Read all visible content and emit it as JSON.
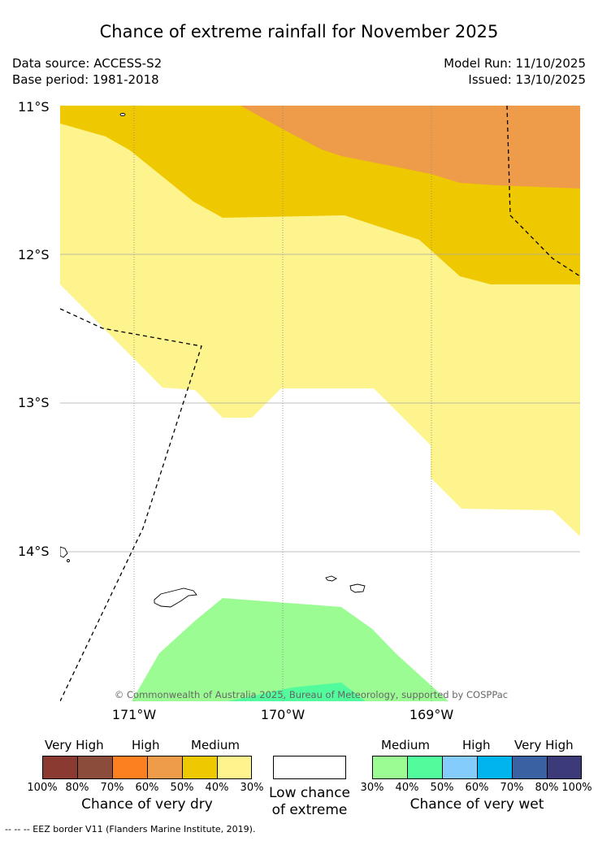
{
  "header": {
    "title": "Chance of extreme rainfall for November 2025",
    "data_source": "Data source: ACCESS-S2",
    "base_period": "Base period: 1981-2018",
    "model_run": "Model Run: 11/10/2025",
    "issued": "Issued: 13/10/2025"
  },
  "map": {
    "lat_labels": [
      "11°S",
      "12°S",
      "13°S",
      "14°S"
    ],
    "lon_labels": [
      "171°W",
      "170°W",
      "169°W"
    ],
    "copyright": "© Commonwealth of Australia 2025, Bureau of Meteorology, supported by COSPPac",
    "colors": {
      "medium_dry": "#fdf48e",
      "high_dry_50": "#eec800",
      "high_dry_60": "#ee9c4a",
      "medium_wet_30": "#9cfc94",
      "medium_wet_40": "#52fc9c",
      "grid": "#aaaaaa"
    }
  },
  "legend": {
    "dry": {
      "categories": [
        "Very High",
        "High",
        "Medium"
      ],
      "percent_labels": [
        "100%",
        "80%",
        "70%",
        "60%",
        "50%",
        "40%",
        "30%"
      ],
      "colors": [
        "#8b3a32",
        "#8b4c3c",
        "#fd8020",
        "#ee9c4a",
        "#eec800",
        "#fdf48e"
      ],
      "title": "Chance of very dry"
    },
    "low": {
      "line1": "Low chance",
      "line2": "of extreme"
    },
    "wet": {
      "categories": [
        "Medium",
        "High",
        "Very High"
      ],
      "percent_labels": [
        "30%",
        "40%",
        "50%",
        "60%",
        "70%",
        "80%",
        "100%"
      ],
      "colors": [
        "#9cfc94",
        "#52fc9c",
        "#84ccfc",
        "#00b4ee",
        "#3a62a2",
        "#3c3a78"
      ],
      "title": "Chance of very wet"
    }
  },
  "footnote": "-- -- -- EEZ border V11 (Flanders Marine Institute, 2019)."
}
